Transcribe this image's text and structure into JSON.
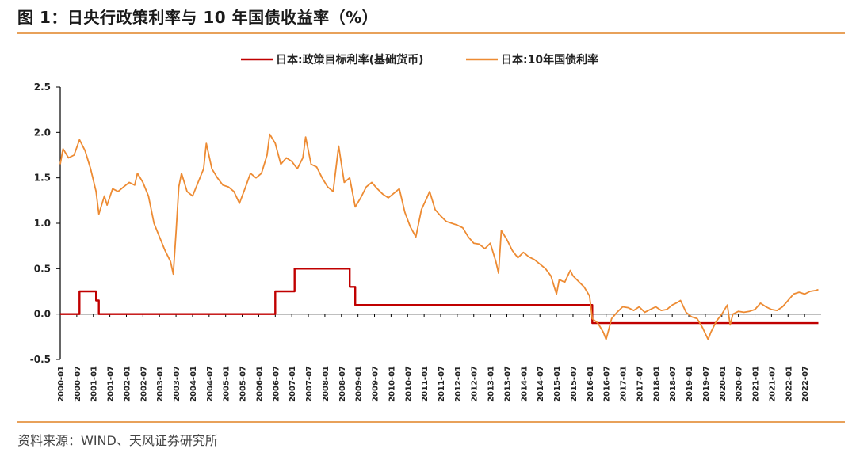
{
  "figure": {
    "title": "图 1：日央行政策利率与 10 年国债收益率（%）",
    "source": "资料来源：WIND、天风证券研究所"
  },
  "colors": {
    "policy_rate": "#C00000",
    "jgb_10y": "#ED8B33",
    "rule": "#E8A15A",
    "axis": "#000000"
  },
  "chart_data": {
    "type": "line",
    "title": "",
    "xlabel": "",
    "ylabel": "",
    "ylim": [
      -0.5,
      2.5
    ],
    "yticks": [
      "-0.5",
      "0.0",
      "0.5",
      "1.0",
      "1.5",
      "2.0",
      "2.5"
    ],
    "xlim": [
      "2000-01",
      "2023-01"
    ],
    "xticks": [
      "2000-01",
      "2000-07",
      "2001-01",
      "2001-07",
      "2002-01",
      "2002-07",
      "2003-01",
      "2003-07",
      "2004-01",
      "2004-07",
      "2005-01",
      "2005-07",
      "2006-01",
      "2006-07",
      "2007-01",
      "2007-07",
      "2008-01",
      "2008-07",
      "2009-01",
      "2009-07",
      "2010-01",
      "2010-07",
      "2011-01",
      "2011-07",
      "2012-01",
      "2012-07",
      "2013-01",
      "2013-07",
      "2014-01",
      "2014-07",
      "2015-01",
      "2015-07",
      "2016-01",
      "2016-07",
      "2017-01",
      "2017-07",
      "2018-01",
      "2018-07",
      "2019-01",
      "2019-07",
      "2020-01",
      "2020-07",
      "2021-01",
      "2021-07",
      "2022-01",
      "2022-07"
    ],
    "legend_position": "top-center",
    "grid": false,
    "series": [
      {
        "name": "日本:政策目标利率(基础货币)",
        "step": true,
        "points": [
          [
            "2000-01",
            0.0
          ],
          [
            "2000-08",
            0.25
          ],
          [
            "2001-02",
            0.15
          ],
          [
            "2001-03",
            0.0
          ],
          [
            "2006-07",
            0.25
          ],
          [
            "2007-02",
            0.5
          ],
          [
            "2008-10",
            0.3
          ],
          [
            "2008-12",
            0.1
          ],
          [
            "2016-02",
            -0.1
          ],
          [
            "2022-12",
            -0.1
          ]
        ]
      },
      {
        "name": "日本:10年国债利率",
        "step": false,
        "points": [
          [
            "2000-01",
            1.65
          ],
          [
            "2000-02",
            1.82
          ],
          [
            "2000-04",
            1.72
          ],
          [
            "2000-06",
            1.75
          ],
          [
            "2000-08",
            1.92
          ],
          [
            "2000-10",
            1.8
          ],
          [
            "2000-12",
            1.6
          ],
          [
            "2001-02",
            1.35
          ],
          [
            "2001-03",
            1.1
          ],
          [
            "2001-05",
            1.3
          ],
          [
            "2001-06",
            1.2
          ],
          [
            "2001-08",
            1.38
          ],
          [
            "2001-10",
            1.35
          ],
          [
            "2001-12",
            1.4
          ],
          [
            "2002-02",
            1.45
          ],
          [
            "2002-04",
            1.42
          ],
          [
            "2002-05",
            1.55
          ],
          [
            "2002-07",
            1.45
          ],
          [
            "2002-09",
            1.3
          ],
          [
            "2002-11",
            1.0
          ],
          [
            "2003-01",
            0.85
          ],
          [
            "2003-03",
            0.7
          ],
          [
            "2003-05",
            0.58
          ],
          [
            "2003-06",
            0.44
          ],
          [
            "2003-07",
            0.9
          ],
          [
            "2003-08",
            1.4
          ],
          [
            "2003-09",
            1.55
          ],
          [
            "2003-11",
            1.35
          ],
          [
            "2004-01",
            1.3
          ],
          [
            "2004-03",
            1.45
          ],
          [
            "2004-05",
            1.6
          ],
          [
            "2004-06",
            1.88
          ],
          [
            "2004-08",
            1.6
          ],
          [
            "2004-10",
            1.5
          ],
          [
            "2004-12",
            1.42
          ],
          [
            "2005-02",
            1.4
          ],
          [
            "2005-04",
            1.35
          ],
          [
            "2005-06",
            1.22
          ],
          [
            "2005-08",
            1.38
          ],
          [
            "2005-10",
            1.55
          ],
          [
            "2005-12",
            1.5
          ],
          [
            "2006-02",
            1.55
          ],
          [
            "2006-04",
            1.75
          ],
          [
            "2006-05",
            1.98
          ],
          [
            "2006-07",
            1.88
          ],
          [
            "2006-09",
            1.65
          ],
          [
            "2006-11",
            1.72
          ],
          [
            "2007-01",
            1.68
          ],
          [
            "2007-03",
            1.6
          ],
          [
            "2007-05",
            1.72
          ],
          [
            "2007-06",
            1.95
          ],
          [
            "2007-08",
            1.65
          ],
          [
            "2007-10",
            1.62
          ],
          [
            "2007-12",
            1.5
          ],
          [
            "2008-02",
            1.4
          ],
          [
            "2008-04",
            1.35
          ],
          [
            "2008-06",
            1.85
          ],
          [
            "2008-08",
            1.45
          ],
          [
            "2008-10",
            1.5
          ],
          [
            "2008-12",
            1.18
          ],
          [
            "2009-02",
            1.28
          ],
          [
            "2009-04",
            1.4
          ],
          [
            "2009-06",
            1.45
          ],
          [
            "2009-08",
            1.38
          ],
          [
            "2009-10",
            1.32
          ],
          [
            "2009-12",
            1.28
          ],
          [
            "2010-02",
            1.33
          ],
          [
            "2010-04",
            1.38
          ],
          [
            "2010-06",
            1.12
          ],
          [
            "2010-08",
            0.96
          ],
          [
            "2010-10",
            0.85
          ],
          [
            "2010-12",
            1.15
          ],
          [
            "2011-02",
            1.28
          ],
          [
            "2011-03",
            1.35
          ],
          [
            "2011-05",
            1.15
          ],
          [
            "2011-07",
            1.08
          ],
          [
            "2011-09",
            1.02
          ],
          [
            "2011-11",
            1.0
          ],
          [
            "2012-01",
            0.98
          ],
          [
            "2012-03",
            0.95
          ],
          [
            "2012-05",
            0.85
          ],
          [
            "2012-07",
            0.78
          ],
          [
            "2012-09",
            0.77
          ],
          [
            "2012-11",
            0.72
          ],
          [
            "2013-01",
            0.78
          ],
          [
            "2013-03",
            0.58
          ],
          [
            "2013-04",
            0.45
          ],
          [
            "2013-05",
            0.92
          ],
          [
            "2013-07",
            0.82
          ],
          [
            "2013-09",
            0.7
          ],
          [
            "2013-11",
            0.62
          ],
          [
            "2014-01",
            0.68
          ],
          [
            "2014-03",
            0.63
          ],
          [
            "2014-05",
            0.6
          ],
          [
            "2014-07",
            0.55
          ],
          [
            "2014-09",
            0.5
          ],
          [
            "2014-11",
            0.42
          ],
          [
            "2015-01",
            0.22
          ],
          [
            "2015-02",
            0.38
          ],
          [
            "2015-04",
            0.35
          ],
          [
            "2015-06",
            0.48
          ],
          [
            "2015-07",
            0.42
          ],
          [
            "2015-09",
            0.36
          ],
          [
            "2015-11",
            0.3
          ],
          [
            "2016-01",
            0.2
          ],
          [
            "2016-02",
            -0.05
          ],
          [
            "2016-04",
            -0.1
          ],
          [
            "2016-06",
            -0.2
          ],
          [
            "2016-07",
            -0.28
          ],
          [
            "2016-09",
            -0.05
          ],
          [
            "2016-11",
            0.02
          ],
          [
            "2017-01",
            0.08
          ],
          [
            "2017-03",
            0.07
          ],
          [
            "2017-05",
            0.04
          ],
          [
            "2017-07",
            0.08
          ],
          [
            "2017-09",
            0.02
          ],
          [
            "2017-11",
            0.05
          ],
          [
            "2018-01",
            0.08
          ],
          [
            "2018-03",
            0.04
          ],
          [
            "2018-05",
            0.05
          ],
          [
            "2018-07",
            0.1
          ],
          [
            "2018-09",
            0.13
          ],
          [
            "2018-10",
            0.15
          ],
          [
            "2018-12",
            0.02
          ],
          [
            "2019-02",
            -0.03
          ],
          [
            "2019-04",
            -0.05
          ],
          [
            "2019-06",
            -0.15
          ],
          [
            "2019-08",
            -0.28
          ],
          [
            "2019-09",
            -0.2
          ],
          [
            "2019-11",
            -0.08
          ],
          [
            "2020-01",
            0.0
          ],
          [
            "2020-03",
            0.1
          ],
          [
            "2020-04",
            -0.12
          ],
          [
            "2020-05",
            0.0
          ],
          [
            "2020-07",
            0.03
          ],
          [
            "2020-09",
            0.02
          ],
          [
            "2020-11",
            0.03
          ],
          [
            "2021-01",
            0.05
          ],
          [
            "2021-03",
            0.12
          ],
          [
            "2021-05",
            0.08
          ],
          [
            "2021-07",
            0.05
          ],
          [
            "2021-09",
            0.04
          ],
          [
            "2021-11",
            0.08
          ],
          [
            "2022-01",
            0.15
          ],
          [
            "2022-03",
            0.22
          ],
          [
            "2022-05",
            0.24
          ],
          [
            "2022-07",
            0.22
          ],
          [
            "2022-09",
            0.25
          ],
          [
            "2022-11",
            0.26
          ],
          [
            "2022-12",
            0.27
          ]
        ]
      }
    ]
  }
}
